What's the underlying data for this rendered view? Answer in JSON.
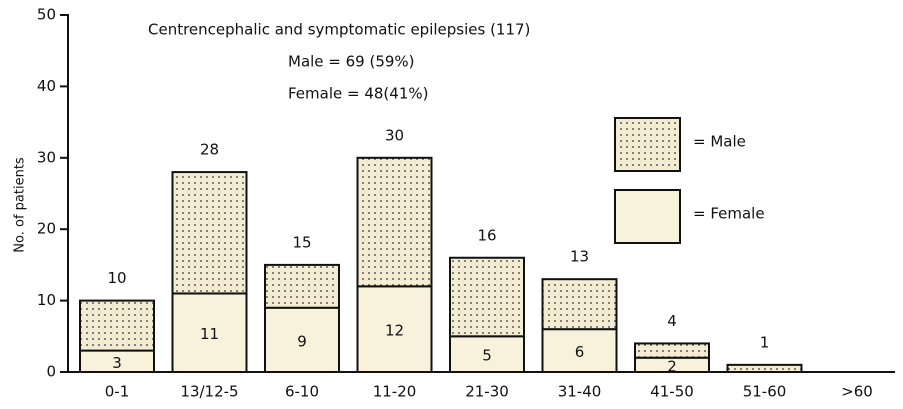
{
  "chart_data": {
    "type": "stacked-bar",
    "title": "Centrencephalic and symptomatic epilepsies (117)",
    "subtitle": [
      "Male = 69 (59%)",
      "Female = 48(41%)"
    ],
    "y_label": "No. of patients",
    "categories": [
      "0-1",
      "13/12-5",
      "6-10",
      "11-20",
      "21-30",
      "31-40",
      "41-50",
      "51-60",
      ">60"
    ],
    "series": [
      {
        "name": "= Female",
        "color": "#f8f1dc",
        "pattern": "plain",
        "values": [
          3,
          11,
          9,
          12,
          5,
          6,
          2,
          null,
          null
        ]
      },
      {
        "name": "= Male",
        "color": "#f4ecd2",
        "pattern": "dots",
        "values": [
          7,
          17,
          6,
          18,
          11,
          7,
          2,
          1,
          null
        ]
      }
    ],
    "total_labels": [
      "10",
      "28",
      "15",
      "30",
      "16",
      "13",
      "4",
      "1",
      null
    ],
    "ylim": [
      0,
      50
    ],
    "yticks": [
      0,
      10,
      20,
      30,
      40,
      50
    ]
  }
}
